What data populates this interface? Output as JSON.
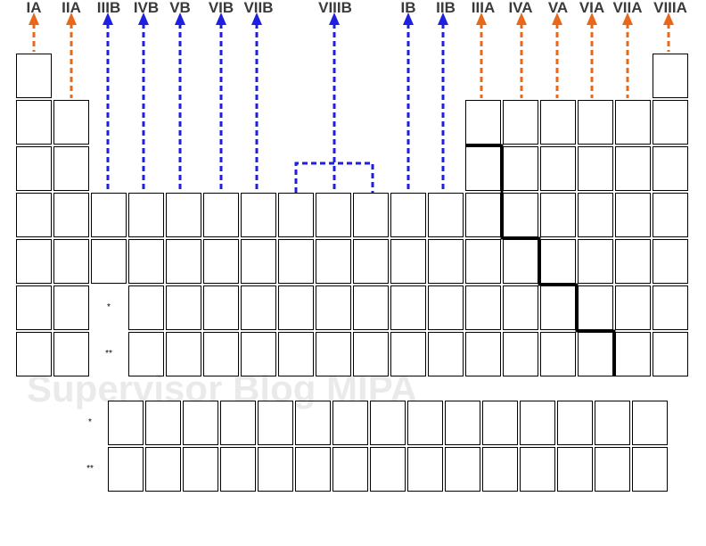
{
  "groups": [
    {
      "label": "IA",
      "color": "#e8681a"
    },
    {
      "label": "IIA",
      "color": "#e8681a"
    },
    {
      "label": "IIIB",
      "color": "#1f1fe0"
    },
    {
      "label": "IVB",
      "color": "#1f1fe0"
    },
    {
      "label": "VB",
      "color": "#1f1fe0"
    },
    {
      "label": "VIB",
      "color": "#1f1fe0"
    },
    {
      "label": "VIIB",
      "color": "#1f1fe0"
    },
    {
      "label": "VIIIB",
      "color": "#1f1fe0"
    },
    {
      "label": "IB",
      "color": "#1f1fe0"
    },
    {
      "label": "IIB",
      "color": "#1f1fe0"
    },
    {
      "label": "IIIA",
      "color": "#e8681a"
    },
    {
      "label": "IVA",
      "color": "#e8681a"
    },
    {
      "label": "VA",
      "color": "#e8681a"
    },
    {
      "label": "VIA",
      "color": "#e8681a"
    },
    {
      "label": "VIIA",
      "color": "#e8681a"
    },
    {
      "label": "VIIIA",
      "color": "#e8681a"
    }
  ],
  "markers": {
    "lanthanide": "*",
    "actinide": "**"
  },
  "watermark": "Supervisor Blog MIPA",
  "colors": {
    "main_group": "#e8681a",
    "transition": "#1f1fe0",
    "grid": "#000000"
  }
}
